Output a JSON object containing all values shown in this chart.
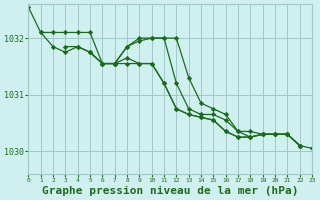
{
  "background_color": "#d0f0f0",
  "grid_color": "#a0c8c8",
  "line_color": "#1a6b1a",
  "marker_color": "#1a6b1a",
  "xlabel": "Graphe pression niveau de la mer (hPa)",
  "xlabel_fontsize": 8,
  "ylabel_ticks": [
    1030,
    1031,
    1032
  ],
  "xlim": [
    0,
    23
  ],
  "ylim": [
    1029.6,
    1032.6
  ],
  "x_ticks": [
    0,
    1,
    2,
    3,
    4,
    5,
    6,
    7,
    8,
    9,
    10,
    11,
    12,
    13,
    14,
    15,
    16,
    17,
    18,
    19,
    20,
    21,
    22,
    23
  ],
  "series": [
    {
      "x": [
        0,
        1,
        2,
        3,
        4,
        5,
        6,
        7,
        8,
        9,
        10,
        11,
        12,
        13,
        14,
        15,
        16,
        17,
        18,
        19,
        20,
        21,
        22
      ],
      "y": [
        1032.55,
        1032.1,
        1031.85,
        1031.75,
        1031.85,
        1031.75,
        1031.55,
        1031.55,
        1031.85,
        1031.95,
        1032.0,
        1032.0,
        1032.0,
        1031.3,
        1030.85,
        1030.75,
        1030.65,
        1030.35,
        1030.35,
        1030.3,
        1030.3,
        1030.3,
        1030.1
      ]
    },
    {
      "x": [
        1,
        2,
        3,
        4,
        5,
        6,
        7,
        8,
        9,
        10,
        11,
        12,
        13,
        14,
        15,
        16,
        17,
        18,
        19,
        20,
        21,
        22
      ],
      "y": [
        1032.1,
        1032.1,
        1032.1,
        1032.1,
        1032.1,
        1031.55,
        1031.55,
        1031.85,
        1032.0,
        1032.0,
        1032.0,
        1031.2,
        1030.75,
        1030.65,
        1030.65,
        1030.55,
        1030.35,
        1030.25,
        1030.3,
        1030.3,
        1030.3,
        1030.1
      ]
    },
    {
      "x": [
        3,
        4,
        5,
        6,
        7,
        8,
        9,
        10,
        11,
        12,
        13,
        14,
        15,
        16,
        17,
        18,
        19,
        20,
        21,
        22
      ],
      "y": [
        1031.85,
        1031.85,
        1031.75,
        1031.55,
        1031.55,
        1031.65,
        1031.55,
        1031.55,
        1031.2,
        1030.75,
        1030.65,
        1030.6,
        1030.55,
        1030.35,
        1030.25,
        1030.25,
        1030.3,
        1030.3,
        1030.3,
        1030.1
      ]
    },
    {
      "x": [
        5,
        6,
        7,
        8,
        9,
        10,
        11,
        12,
        13,
        14,
        15,
        16,
        17,
        18,
        19,
        20,
        21,
        22,
        23
      ],
      "y": [
        1031.75,
        1031.55,
        1031.55,
        1031.55,
        1031.55,
        1031.55,
        1031.2,
        1030.75,
        1030.65,
        1030.6,
        1030.55,
        1030.35,
        1030.25,
        1030.25,
        1030.3,
        1030.3,
        1030.3,
        1030.1,
        1030.05
      ]
    }
  ]
}
